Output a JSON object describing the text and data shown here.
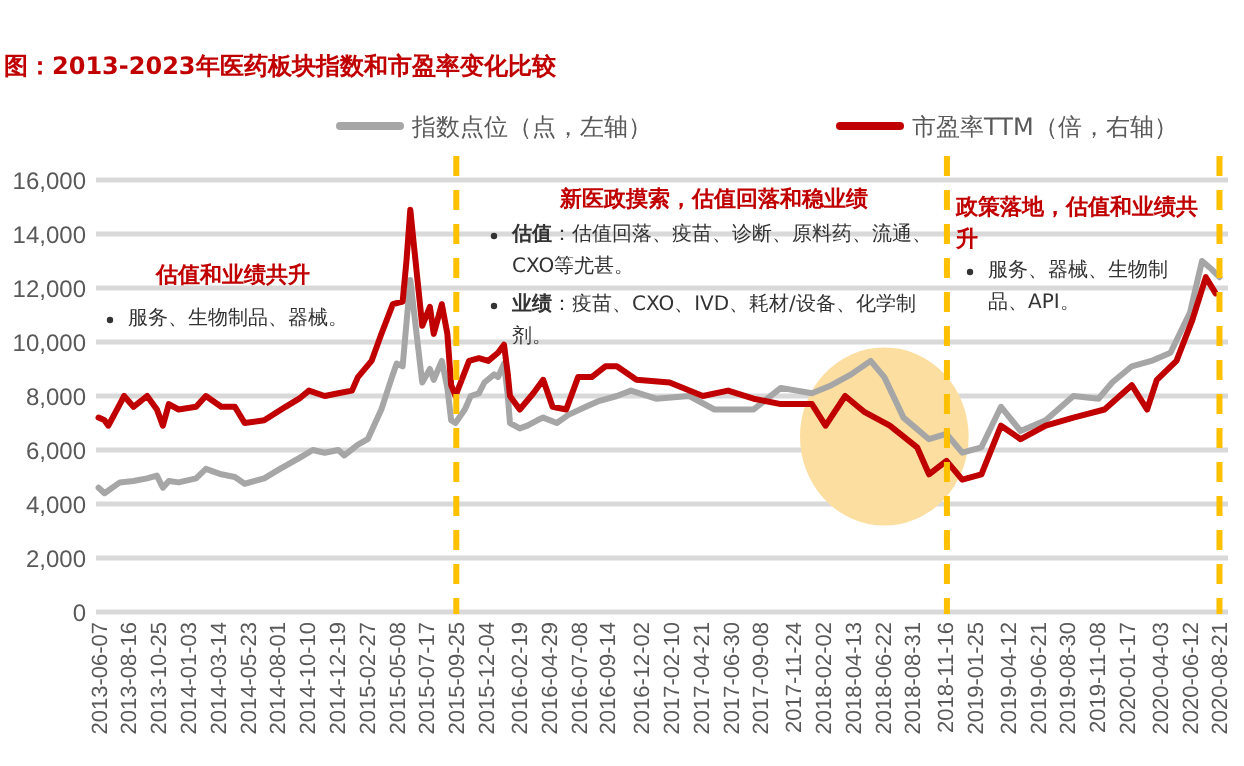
{
  "chart_data": {
    "type": "line",
    "title": "图：2013-2023年医药板块指数和市盈率变化比较",
    "xlim": [
      "2013-06-01",
      "2020-09-10"
    ],
    "xticks": [
      "2013-06-07",
      "2013-08-16",
      "2013-10-25",
      "2014-01-03",
      "2014-03-14",
      "2014-05-23",
      "2014-08-01",
      "2014-10-10",
      "2014-12-19",
      "2015-02-27",
      "2015-05-08",
      "2015-07-17",
      "2015-09-25",
      "2015-12-04",
      "2016-02-19",
      "2016-04-29",
      "2016-07-08",
      "2016-09-14",
      "2016-12-02",
      "2017-02-10",
      "2017-04-21",
      "2017-06-30",
      "2017-09-08",
      "2017-11-24",
      "2018-02-02",
      "2018-04-13",
      "2018-06-22",
      "2018-08-31",
      "2018-11-16",
      "2019-01-25",
      "2019-04-12",
      "2019-06-21",
      "2019-08-30",
      "2019-11-08",
      "2020-01-17",
      "2020-04-03",
      "2020-06-12",
      "2020-08-21"
    ],
    "ylim": [
      0,
      16000
    ],
    "yticks": [
      0,
      {
        "value": 2000,
        "label": "2,000"
      },
      {
        "value": 4000,
        "label": "4,000"
      },
      {
        "value": 6000,
        "label": "6,000"
      },
      {
        "value": 8000,
        "label": "8,000"
      },
      {
        "value": 10000,
        "label": "10,000"
      },
      {
        "value": 12000,
        "label": "12,000"
      },
      {
        "value": 14000,
        "label": "14,000"
      },
      {
        "value": 16000,
        "label": "16,000"
      }
    ],
    "grid": "y",
    "legend": "top",
    "marker": "none",
    "line_style": "solid",
    "series": [
      {
        "name": "指数点位（点，左轴）",
        "color": "#a6a6a6",
        "x": [
          "2013-06-07",
          "2013-06-21",
          "2013-07-27",
          "2013-08-28",
          "2013-09-29",
          "2013-10-22",
          "2013-11-05",
          "2013-11-19",
          "2013-12-12",
          "2014-01-22",
          "2014-02-14",
          "2014-03-22",
          "2014-04-23",
          "2014-05-16",
          "2014-07-01",
          "2014-08-07",
          "2014-09-21",
          "2014-10-23",
          "2014-11-20",
          "2014-12-22",
          "2015-01-05",
          "2015-02-06",
          "2015-03-01",
          "2015-04-02",
          "2015-04-29",
          "2015-05-08",
          "2015-05-22",
          "2015-06-09",
          "2015-07-07",
          "2015-07-25",
          "2015-08-03",
          "2015-08-22",
          "2015-09-04",
          "2015-09-13",
          "2015-09-23",
          "2015-10-15",
          "2015-10-29",
          "2015-11-17",
          "2015-11-30",
          "2015-12-23",
          "2016-01-01",
          "2016-01-15",
          "2016-01-24",
          "2016-01-29",
          "2016-02-21",
          "2016-03-10",
          "2016-04-02",
          "2016-04-16",
          "2016-05-18",
          "2016-06-14",
          "2016-07-25",
          "2016-08-22",
          "2016-10-06",
          "2016-11-08",
          "2017-01-06",
          "2017-03-25",
          "2017-05-23",
          "2017-08-23",
          "2017-10-26",
          "2018-01-07",
          "2018-02-22",
          "2018-04-09",
          "2018-05-25",
          "2018-06-26",
          "2018-08-10",
          "2018-10-09",
          "2018-11-19",
          "2018-12-26",
          "2019-02-09",
          "2019-03-27",
          "2019-05-12",
          "2019-07-10",
          "2019-09-13",
          "2019-11-11",
          "2019-12-13",
          "2020-01-28",
          "2020-03-14",
          "2020-04-28",
          "2020-06-13",
          "2020-07-11",
          "2020-08-02",
          "2020-08-21"
        ],
        "values": [
          4600,
          4400,
          4800,
          4850,
          4950,
          5050,
          4600,
          4850,
          4800,
          4950,
          5300,
          5100,
          5000,
          4750,
          4950,
          5300,
          5700,
          6000,
          5900,
          6000,
          5800,
          6200,
          6400,
          7500,
          8800,
          9200,
          9100,
          12300,
          8500,
          9000,
          8600,
          9300,
          8300,
          7100,
          7000,
          7500,
          8000,
          8100,
          8500,
          8800,
          8700,
          9200,
          8000,
          7000,
          6800,
          6900,
          7100,
          7200,
          7000,
          7300,
          7600,
          7800,
          8000,
          8200,
          7900,
          8000,
          7500,
          7500,
          8300,
          8100,
          8400,
          8800,
          9300,
          8700,
          7200,
          6400,
          6600,
          5900,
          6100,
          7600,
          6700,
          7100,
          8000,
          7900,
          8500,
          9100,
          9300,
          9600,
          11100,
          13000,
          12700,
          12400
        ]
      },
      {
        "name": "市盈率TTM（倍，右轴）",
        "color": "#c00000",
        "x": [
          "2013-06-07",
          "2013-06-21",
          "2013-06-30",
          "2013-07-27",
          "2013-08-06",
          "2013-08-28",
          "2013-09-29",
          "2013-10-22",
          "2013-11-05",
          "2013-11-19",
          "2013-12-12",
          "2014-01-22",
          "2014-02-14",
          "2014-03-22",
          "2014-04-23",
          "2014-05-16",
          "2014-07-01",
          "2014-08-20",
          "2014-09-21",
          "2014-10-14",
          "2014-11-20",
          "2014-12-22",
          "2015-01-23",
          "2015-02-06",
          "2015-03-10",
          "2015-04-02",
          "2015-04-29",
          "2015-05-22",
          "2015-05-31",
          "2015-06-09",
          "2015-06-18",
          "2015-07-07",
          "2015-07-25",
          "2015-08-03",
          "2015-08-22",
          "2015-09-04",
          "2015-09-13",
          "2015-09-23",
          "2015-10-25",
          "2015-11-17",
          "2015-12-09",
          "2016-01-01",
          "2016-01-15",
          "2016-01-24",
          "2016-01-29",
          "2016-02-21",
          "2016-03-24",
          "2016-04-16",
          "2016-05-08",
          "2016-06-09",
          "2016-07-07",
          "2016-08-08",
          "2016-09-09",
          "2016-10-06",
          "2016-11-21",
          "2017-02-07",
          "2017-04-26",
          "2017-06-24",
          "2017-08-23",
          "2017-10-26",
          "2018-01-07",
          "2018-02-08",
          "2018-03-26",
          "2018-05-11",
          "2018-07-09",
          "2018-09-11",
          "2018-10-09",
          "2018-11-19",
          "2018-12-26",
          "2019-02-09",
          "2019-03-27",
          "2019-05-12",
          "2019-07-10",
          "2019-09-13",
          "2019-11-25",
          "2020-01-28",
          "2020-03-04",
          "2020-03-27",
          "2020-05-12",
          "2020-06-18",
          "2020-07-20",
          "2020-08-12"
        ],
        "values": [
          7200,
          7100,
          6900,
          7700,
          8000,
          7600,
          8000,
          7500,
          6900,
          7700,
          7500,
          7600,
          8000,
          7600,
          7600,
          7000,
          7100,
          7600,
          7900,
          8200,
          8000,
          8100,
          8200,
          8700,
          9300,
          10300,
          11400,
          11500,
          13000,
          14900,
          13500,
          10600,
          11300,
          10300,
          11400,
          10300,
          8400,
          8000,
          9300,
          9400,
          9300,
          9600,
          9900,
          8800,
          8000,
          7500,
          8100,
          8600,
          7600,
          7500,
          8700,
          8700,
          9100,
          9100,
          8600,
          8500,
          8000,
          8200,
          7900,
          7700,
          7700,
          6900,
          8000,
          7400,
          6900,
          6100,
          5100,
          5600,
          4900,
          5100,
          6900,
          6400,
          6900,
          7200,
          7500,
          8400,
          7500,
          8600,
          9300,
          10800,
          12400,
          11800
        ]
      }
    ],
    "ref_lines": [
      {
        "axis": "x",
        "value": "2015-09-25",
        "color": "#ffc000",
        "line_style": "dashed"
      },
      {
        "axis": "x",
        "value": "2018-11-20",
        "color": "#ffc000",
        "line_style": "dashed"
      },
      {
        "axis": "x",
        "value": "2020-08-21",
        "color": "#ffc000",
        "line_style": "dashed"
      }
    ],
    "annotations": [
      "估值和业绩共升",
      "服务、生物制品、器械。",
      "新医政摸索，估值回落和稳业绩",
      "**估值**：估值回落、疫苗、诊断、原料药、流通、CXO等尤甚。",
      "**业绩**：疫苗、CXO、IVD、耗材/设备、化学制剂。",
      "政策落地，估值和业绩共升",
      "服务、器械、生物制品、API。"
    ]
  }
}
